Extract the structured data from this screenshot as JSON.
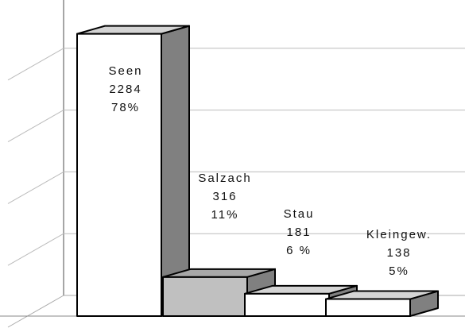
{
  "chart_data": {
    "type": "bar3d",
    "categories": [
      "Seen",
      "Salzach",
      "Stau",
      "Kleingew."
    ],
    "values": [
      2284,
      316,
      181,
      138
    ],
    "share_labels": [
      "78%",
      "11%",
      "6 %",
      "5%"
    ],
    "colors": [
      "#ffffff",
      "#c0c0c0",
      "#ffffff",
      "#ffffff"
    ],
    "ylim": [
      0,
      2500
    ],
    "yticks": [
      0,
      500,
      1000,
      1500,
      2000
    ],
    "grid": true
  }
}
